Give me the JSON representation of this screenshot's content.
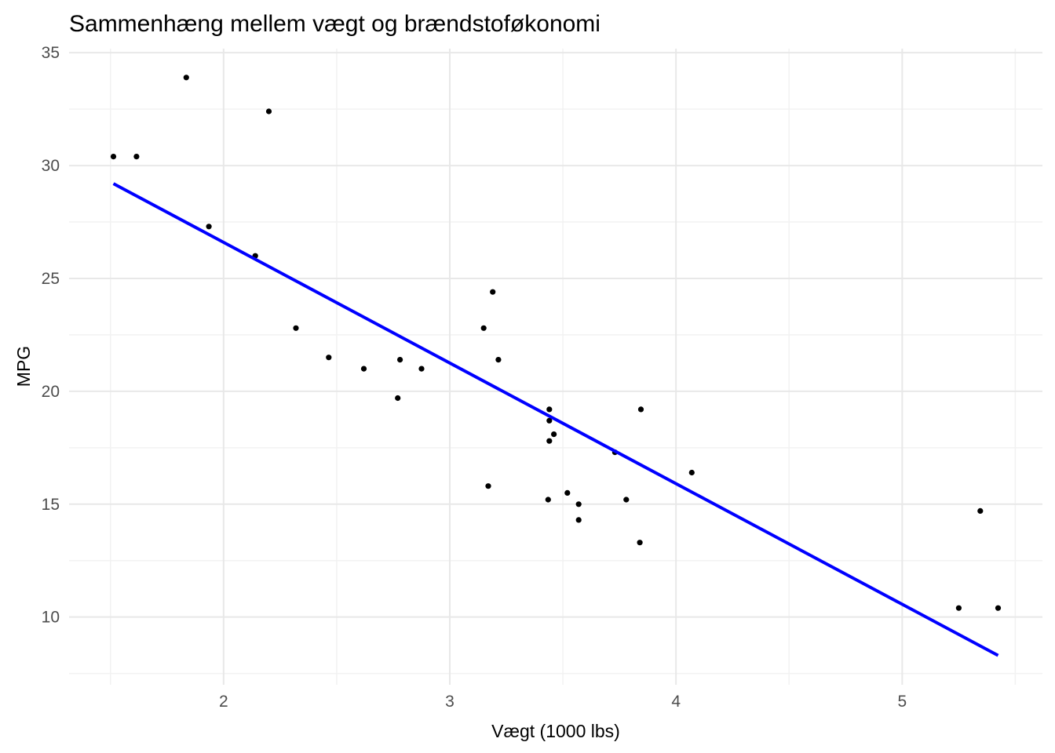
{
  "figure": {
    "title": "Sammenhæng mellem vægt og brændstoføkonomi",
    "x_axis_label": "Vægt (1000 lbs)",
    "y_axis_label": "MPG"
  },
  "colors": {
    "background": "#FFFFFF",
    "point": "#000000",
    "trend_line": "#0000FF",
    "grid_major": "#E8E8E8",
    "grid_minor": "#F2F2F2",
    "tick_label": "#4D4D4D",
    "axis_title": "#000000",
    "title_text": "#000000"
  },
  "chart_data": {
    "type": "scatter",
    "title": "Sammenhæng mellem vægt og brændstoføkonomi",
    "xlabel": "Vægt (1000 lbs)",
    "ylabel": "MPG",
    "xlim": [
      1.317,
      5.62
    ],
    "ylim": [
      7.0,
      35.18
    ],
    "x_ticks": [
      2,
      3,
      4,
      5
    ],
    "y_ticks": [
      10,
      15,
      20,
      25,
      30,
      35
    ],
    "x_minor_ticks": [
      1.5,
      2.5,
      3.5,
      4.5,
      5.5
    ],
    "y_minor_ticks": [
      7.5,
      12.5,
      17.5,
      22.5,
      27.5,
      32.5
    ],
    "grid": true,
    "legend": "none",
    "points": [
      {
        "x": 2.62,
        "y": 21.0
      },
      {
        "x": 2.875,
        "y": 21.0
      },
      {
        "x": 2.32,
        "y": 22.8
      },
      {
        "x": 3.215,
        "y": 21.4
      },
      {
        "x": 3.44,
        "y": 18.7
      },
      {
        "x": 3.46,
        "y": 18.1
      },
      {
        "x": 3.57,
        "y": 14.3
      },
      {
        "x": 3.19,
        "y": 24.4
      },
      {
        "x": 3.15,
        "y": 22.8
      },
      {
        "x": 3.44,
        "y": 19.2
      },
      {
        "x": 3.44,
        "y": 17.8
      },
      {
        "x": 4.07,
        "y": 16.4
      },
      {
        "x": 3.73,
        "y": 17.3
      },
      {
        "x": 3.78,
        "y": 15.2
      },
      {
        "x": 5.25,
        "y": 10.4
      },
      {
        "x": 5.424,
        "y": 10.4
      },
      {
        "x": 5.345,
        "y": 14.7
      },
      {
        "x": 2.2,
        "y": 32.4
      },
      {
        "x": 1.615,
        "y": 30.4
      },
      {
        "x": 1.835,
        "y": 33.9
      },
      {
        "x": 2.465,
        "y": 21.5
      },
      {
        "x": 3.52,
        "y": 15.5
      },
      {
        "x": 3.435,
        "y": 15.2
      },
      {
        "x": 3.84,
        "y": 13.3
      },
      {
        "x": 3.845,
        "y": 19.2
      },
      {
        "x": 1.935,
        "y": 27.3
      },
      {
        "x": 2.14,
        "y": 26.0
      },
      {
        "x": 1.513,
        "y": 30.4
      },
      {
        "x": 3.17,
        "y": 15.8
      },
      {
        "x": 2.77,
        "y": 19.7
      },
      {
        "x": 3.57,
        "y": 15.0
      },
      {
        "x": 2.78,
        "y": 21.4
      }
    ],
    "trend_line": {
      "type": "linear",
      "x1": 1.513,
      "y1": 29.2,
      "x2": 5.424,
      "y2": 8.3,
      "color_name": "blue"
    }
  }
}
